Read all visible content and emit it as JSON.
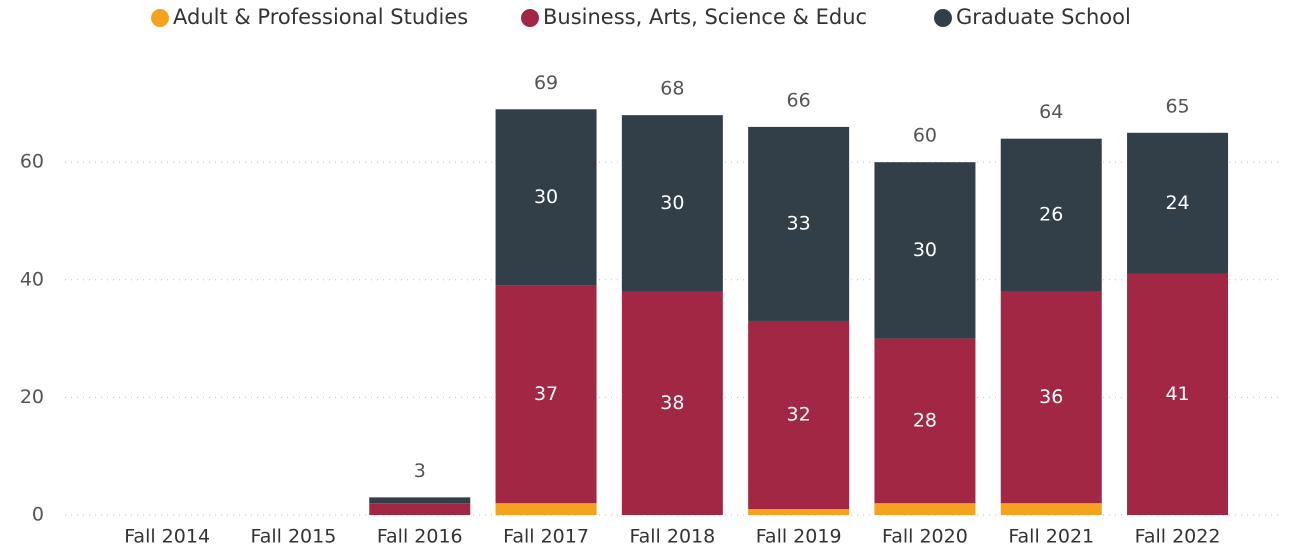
{
  "chart_data": {
    "type": "stacked_bar",
    "categories": [
      "Fall 2014",
      "Fall 2015",
      "Fall 2016",
      "Fall 2017",
      "Fall 2018",
      "Fall 2019",
      "Fall 2020",
      "Fall 2021",
      "Fall 2022"
    ],
    "series": [
      {
        "name": "Adult & Professional Studies",
        "color": "#f5a31f",
        "values": [
          null,
          null,
          0,
          2,
          0,
          1,
          2,
          2,
          0
        ],
        "value_labels": [
          null,
          null,
          null,
          null,
          null,
          null,
          null,
          null,
          null
        ]
      },
      {
        "name": "Business, Arts, Science & Educ",
        "color": "#a12744",
        "values": [
          null,
          null,
          2,
          37,
          38,
          32,
          28,
          36,
          41
        ],
        "value_labels": [
          null,
          null,
          null,
          "37",
          "38",
          "32",
          "28",
          "36",
          "41"
        ]
      },
      {
        "name": "Graduate School",
        "color": "#323e48",
        "values": [
          null,
          null,
          1,
          30,
          30,
          33,
          30,
          26,
          24
        ],
        "value_labels": [
          null,
          null,
          null,
          "30",
          "30",
          "33",
          "30",
          "26",
          "24"
        ]
      }
    ],
    "totals": [
      null,
      null,
      3,
      69,
      68,
      66,
      60,
      64,
      65
    ],
    "ylim": [
      0,
      75
    ],
    "yticks": [
      0,
      20,
      40,
      60
    ],
    "grid": true,
    "legend": "top"
  }
}
